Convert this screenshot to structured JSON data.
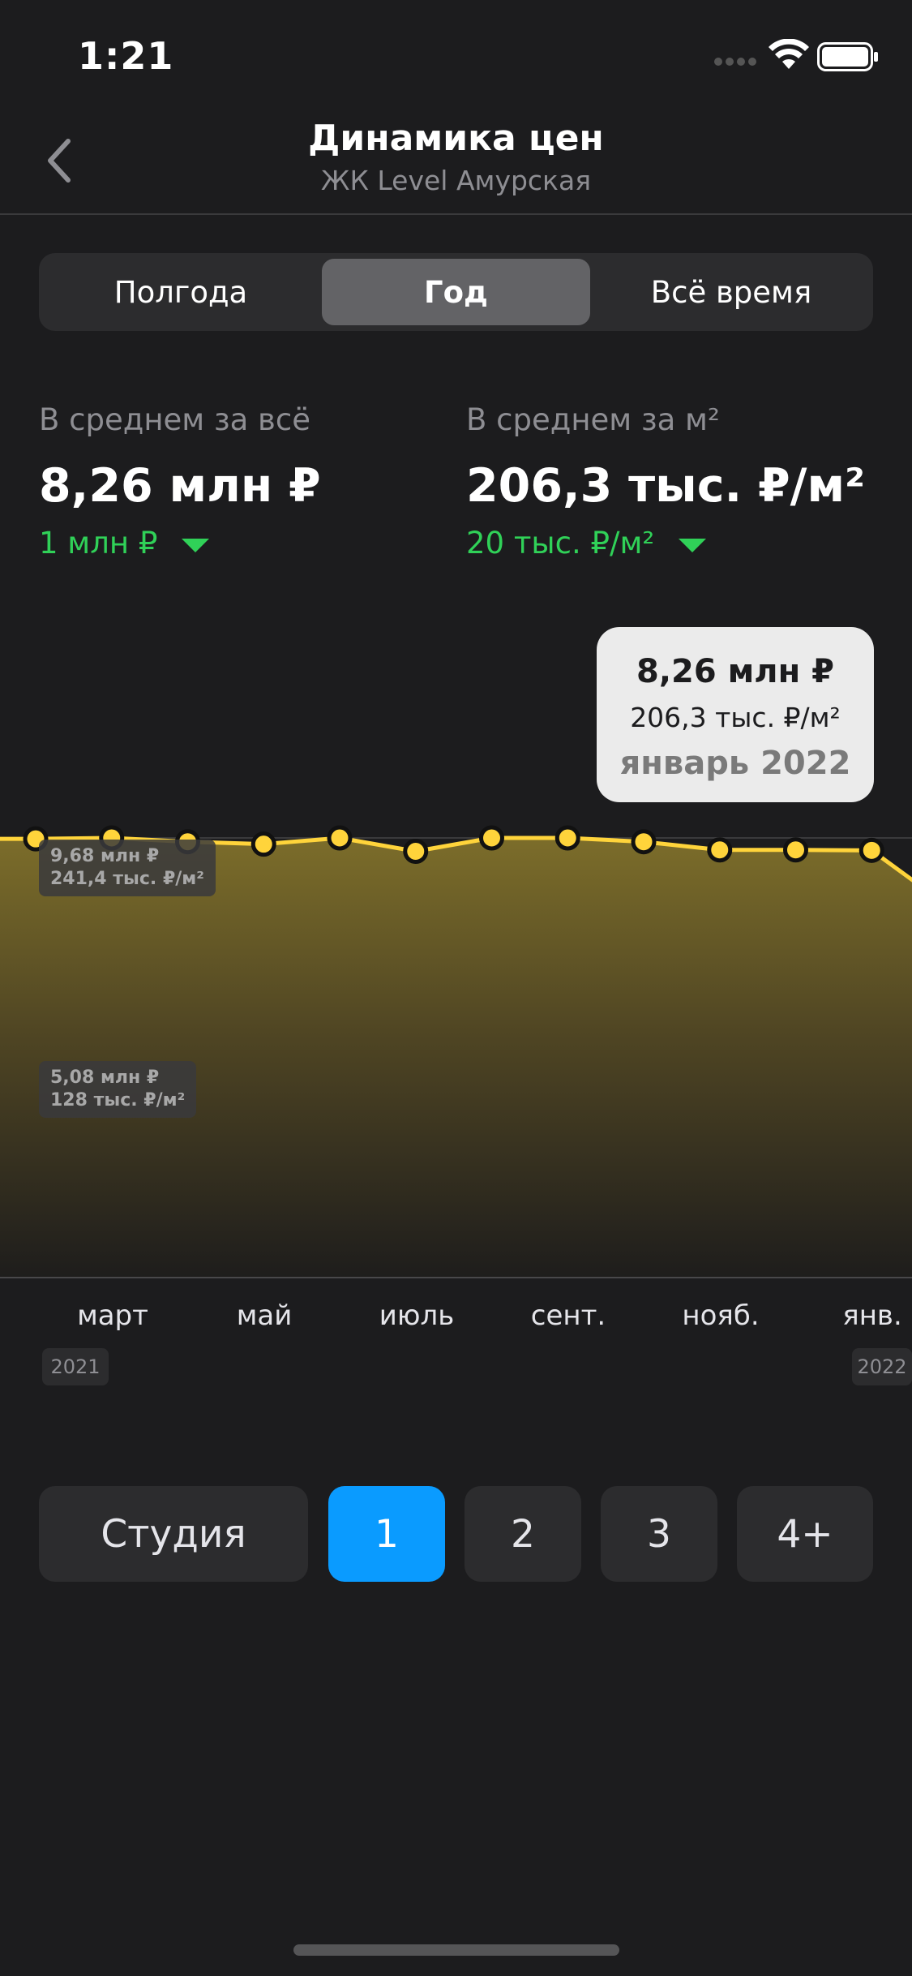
{
  "status_bar": {
    "time": "1:21"
  },
  "header": {
    "title": "Динамика цен",
    "subtitle": "ЖК Level Амурская"
  },
  "period_tabs": [
    {
      "label": "Полгода"
    },
    {
      "label": "Год",
      "selected": true
    },
    {
      "label": "Всё время"
    }
  ],
  "stats": {
    "total": {
      "label": "В среднем за всё",
      "value": "8,26 млн ₽",
      "change": "1 млн ₽"
    },
    "per_sqm": {
      "label": "В среднем за м²",
      "value": "206,3 тыс. ₽/м²",
      "change": "20 тыс. ₽/м²"
    }
  },
  "tooltip": {
    "price": "8,26 млн ₽",
    "per_sqm": "206,3 тыс. ₽/м²",
    "date": "январь 2022"
  },
  "chart_data": {
    "type": "area",
    "y_gridlines": [
      {
        "price": "9,68 млн ₽",
        "per_sqm": "241,4 тыс. ₽/м²",
        "value": 9.68
      },
      {
        "price": "5,08 млн ₽",
        "per_sqm": "128 тыс. ₽/м²",
        "value": 5.08
      }
    ],
    "x_labels": [
      "март",
      "май",
      "июль",
      "сент.",
      "нояб.",
      "янв."
    ],
    "year_labels": [
      "2021",
      "2022"
    ],
    "points_price_mln": [
      9.66,
      9.68,
      9.6,
      9.55,
      9.68,
      9.4,
      9.68,
      9.68,
      9.6,
      9.43,
      9.43,
      9.42,
      8.26
    ],
    "selected_point_index": 12,
    "line_color": "#ffd43b",
    "fill_color": "#8a7a2f"
  },
  "room_filters": [
    {
      "label": "Студия"
    },
    {
      "label": "1",
      "selected": true
    },
    {
      "label": "2"
    },
    {
      "label": "3"
    },
    {
      "label": "4+"
    }
  ]
}
